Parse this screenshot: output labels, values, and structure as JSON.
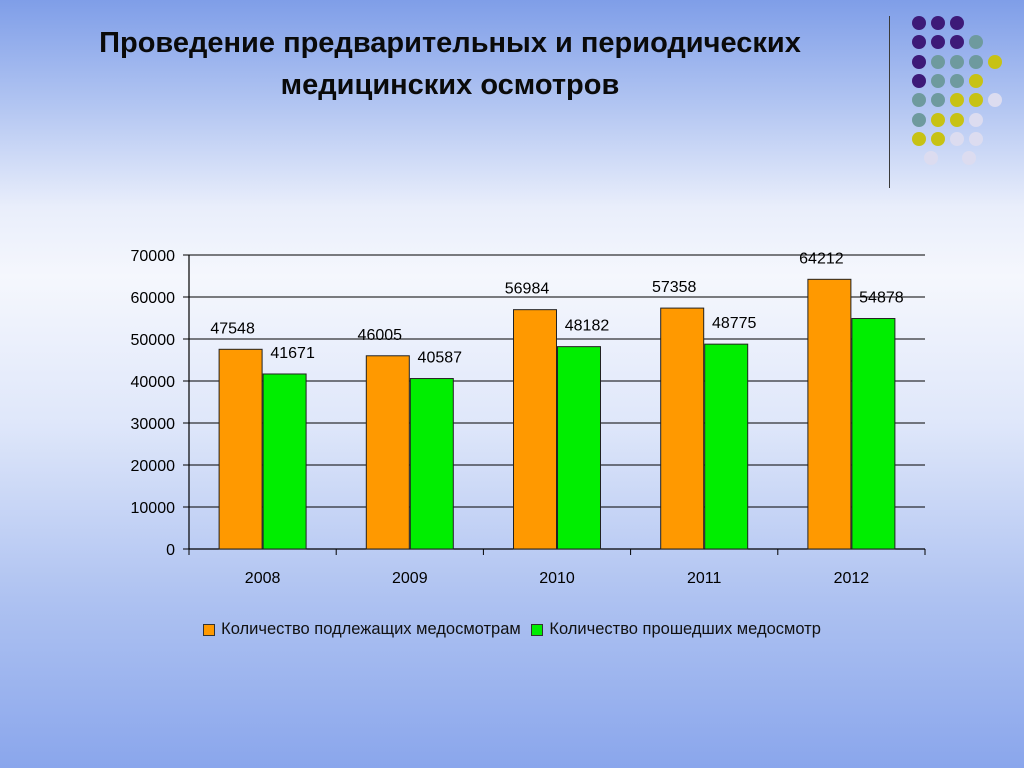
{
  "title": {
    "line1": "Проведение предварительных и периодических",
    "line2": "медицинских осмотров"
  },
  "decoration": {
    "dot_colors": {
      "purple": "#3d1a78",
      "teal": "#6e9a9e",
      "olive": "#c7c214",
      "light": "#dcdcf0"
    }
  },
  "chart_data": {
    "type": "bar",
    "categories": [
      "2008",
      "2009",
      "2010",
      "2011",
      "2012"
    ],
    "series": [
      {
        "name": "Количество подлежащих медосмотрам",
        "values": [
          47548,
          46005,
          56984,
          57358,
          64212
        ],
        "color": "#ff9900"
      },
      {
        "name": "Количество прошедших медосмотр",
        "values": [
          41671,
          40587,
          48182,
          48775,
          54878
        ],
        "color": "#00ee00"
      }
    ],
    "data_labels": {
      "s0": [
        "47548",
        "46005",
        "56984",
        "57358",
        "64212"
      ],
      "s1": [
        "41671",
        "40587",
        "48182",
        "48775",
        "54878"
      ]
    },
    "y_ticks": [
      "0",
      "10000",
      "20000",
      "30000",
      "40000",
      "50000",
      "60000",
      "70000"
    ],
    "ylim": [
      0,
      70000
    ],
    "grid": true,
    "legend_position": "bottom"
  }
}
